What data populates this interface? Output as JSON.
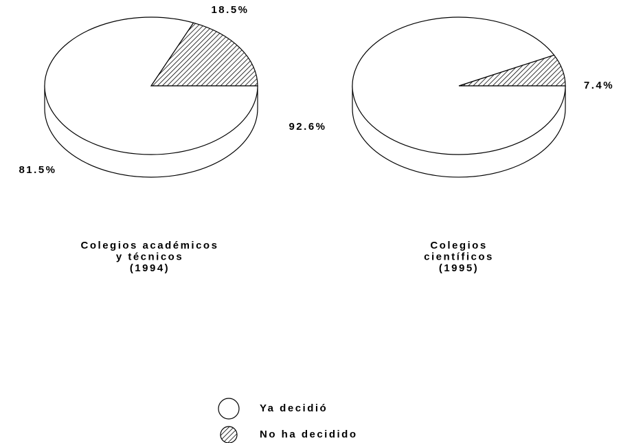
{
  "chart_data": [
    {
      "type": "pie",
      "title": [
        "Colegios académicos",
        "y técnicos",
        "(1994)"
      ],
      "categories": [
        "Ya decidió",
        "No ha decidido"
      ],
      "values": [
        81.5,
        18.5
      ],
      "value_labels": [
        "81.5%",
        "18.5%"
      ],
      "colors": [
        "#ffffff",
        "hatch"
      ]
    },
    {
      "type": "pie",
      "title": [
        "Colegios",
        "científicos",
        "(1995)"
      ],
      "categories": [
        "Ya decidió",
        "No ha decidido"
      ],
      "values": [
        92.6,
        7.4
      ],
      "value_labels": [
        "92.6%",
        "7.4%"
      ],
      "colors": [
        "#ffffff",
        "hatch"
      ]
    }
  ]
}
